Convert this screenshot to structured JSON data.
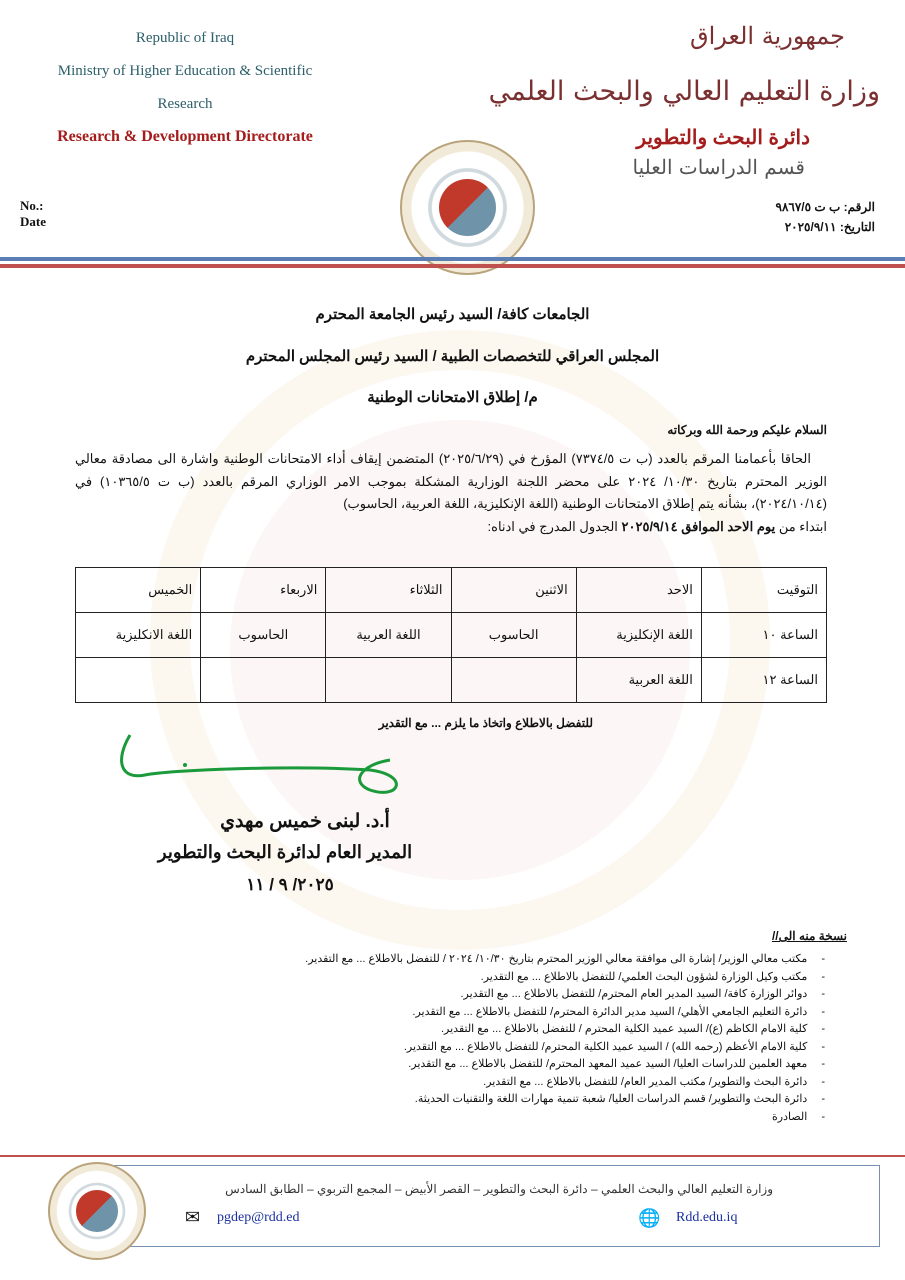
{
  "header": {
    "en": {
      "line1": "Republic of Iraq",
      "line2": "Ministry of Higher Education & Scientific",
      "line3": "Research",
      "directorate": "Research & Development Directorate",
      "no_label": "No.:",
      "date_label": "Date"
    },
    "ar": {
      "republic": "جمهورية العراق",
      "ministry": "وزارة التعليم العالي والبحث العلمي",
      "directorate": "دائرة البحث والتطوير",
      "department": "قسم الدراسات العليا",
      "number": "الرقم: ب ت ٩٨٦٧/٥",
      "date": "التاريخ: ٢٠٢٥/٩/١١"
    },
    "seal_text": "Republic of Iraq - Ministry of Higher Education and Scientific Research",
    "colors": {
      "blue_line": "#5b7fb5",
      "red_line": "#c0504d"
    }
  },
  "addressees": [
    "الجامعات كافة/ السيد رئيس الجامعة المحترم",
    "المجلس العراقي للتخصصات الطبية / السيد رئيس المجلس المحترم"
  ],
  "subject": "م/ إطلاق الامتحانات الوطنية",
  "greeting": "السلام عليكم ورحمة الله وبركاته",
  "body": {
    "paragraph": "الحاقا بأعمامنا المرقم بالعدد (ب ت ٧٣٧٤/٥) المؤرخ في (٢٠٢٥/٦/٢٩) المتضمن إيقاف أداء الامتحانات الوطنية واشارة الى مصادقة معالي الوزير المحترم بتاريخ ١٠/٣٠/ ٢٠٢٤ على محضر اللجنة الوزارية المشكلة بموجب الامر الوزاري المرقم بالعدد (ب ت ١٠٣٦٥/٥) في (٢٠٢٤/١٠/١٤)، بشأنه يتم إطلاق الامتحانات الوطنية (اللغة الإنكليزية، اللغة العربية، الحاسوب)",
    "last_prefix": "ابتداء من ",
    "last_bold": "يوم الاحد الموافق ٢٠٢٥/٩/١٤",
    "last_suffix": " الجدول المدرج في ادناه:"
  },
  "schedule": {
    "headers": [
      "التوقيت",
      "الاحد",
      "الاثنين",
      "الثلاثاء",
      "الاربعاء",
      "الخميس"
    ],
    "rows": [
      [
        "الساعة ١٠",
        "اللغة الإنكليزية",
        "الحاسوب",
        "اللغة العربية",
        "الحاسوب",
        "اللغة الانكليزية"
      ],
      [
        "الساعة ١٢",
        "اللغة العربية",
        "",
        "",
        "",
        ""
      ]
    ]
  },
  "closing": "للتفضل بالاطلاع واتخاذ ما يلزم ... مع التقدير",
  "signatory": {
    "name": "أ.د. لبنى خميس مهدي",
    "title": "المدير العام لدائرة البحث والتطوير",
    "date": "٢٠٢٥/ ٩ / ١١"
  },
  "copies": {
    "label": "نسخة منه الى//",
    "items": [
      "مكتب معالي الوزير/ إشارة الى موافقة معالي الوزير المحترم بتاريخ ١٠/٣٠/ ٢٠٢٤ / للتفضل بالاطلاع ... مع التقدير.",
      "مكتب وكيل الوزارة لشؤون البحث العلمي/ للتفضل بالاطلاع ... مع التقدير.",
      "دوائر الوزارة كافة/ السيد المدير العام المحترم/ للتفضل بالاطلاع ... مع التقدير.",
      "دائرة التعليم الجامعي الأهلي/ السيد مدير الدائرة المحترم/ للتفضل بالاطلاع ... مع التقدير.",
      "كلية الامام الكاظم (ع)/ السيد عميد الكلية المحترم / للتفضل بالاطلاع ... مع التقدير.",
      "كلية الامام الأعظم (رحمه الله) / السيد عميد الكلية المحترم/ للتفضل بالاطلاع ... مع التقدير.",
      "معهد العلمين للدراسات العليا/ السيد عميد المعهد المحترم/ للتفضل بالاطلاع ... مع التقدير.",
      "دائرة البحث والتطوير/ مكتب المدير العام/ للتفضل بالاطلاع ... مع التقدير.",
      "دائرة البحث والتطوير/ قسم الدراسات العليا/ شعبة تنمية مهارات اللغة والتقنيات الحديثة.",
      "الصادرة"
    ]
  },
  "footer": {
    "address": "وزارة التعليم العالي والبحث العلمي – دائرة البحث والتطوير – القصر الأبيض – المجمع التربوي – الطابق السادس",
    "email": "pgdep@rdd.ed",
    "website": "Rdd.edu.iq"
  }
}
